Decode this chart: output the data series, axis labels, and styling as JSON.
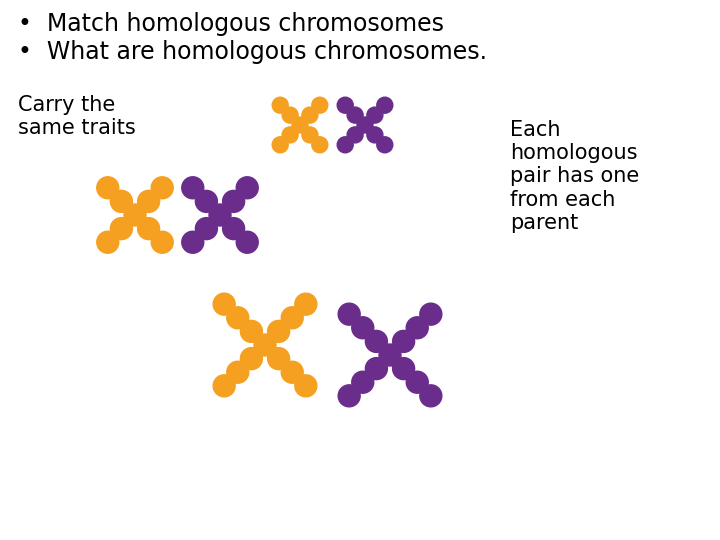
{
  "bg_color": "#ffffff",
  "text_color": "#000000",
  "orange": "#F5A020",
  "purple": "#6B2D8B",
  "bullet1": "Match homologous chromosomes",
  "bullet2": "What are homologous chromosomes.",
  "label_left": "Carry the\nsame traits",
  "label_right": "Each\nhomologous\npair has one\nfrom each\nparent",
  "font_size_bullets": 17,
  "font_size_labels": 15
}
